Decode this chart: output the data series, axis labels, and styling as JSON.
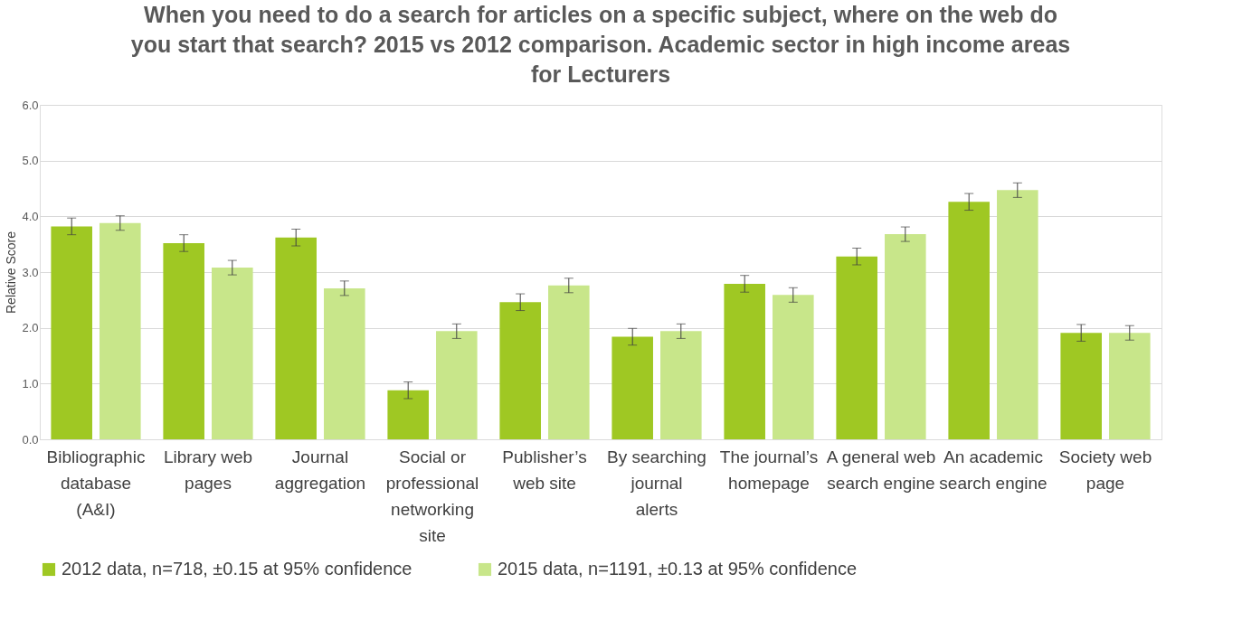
{
  "chart_data": {
    "type": "bar",
    "title": "When you need to do a search for articles on a specific subject, where on the web do you start that search? 2015 vs 2012 comparison. Academic sector in high income areas for Lecturers",
    "ylabel": "Relative Score",
    "categories": [
      "Bibliographic database (A&I)",
      "Library web pages",
      "Journal aggregation",
      "Social or professional networking site",
      "Publisher’s web site",
      "By searching journal alerts",
      "The journal’s homepage",
      "A general web search engine",
      "An academic search engine",
      "Society web page"
    ],
    "series": [
      {
        "name": "2012 data, n=718, ±0.15 at 95% confidence",
        "color": "#9fc823",
        "values": [
          3.82,
          3.52,
          3.62,
          0.88,
          2.46,
          1.84,
          2.79,
          3.28,
          4.26,
          1.91
        ],
        "errors": [
          0.15,
          0.15,
          0.15,
          0.15,
          0.15,
          0.15,
          0.15,
          0.15,
          0.15,
          0.15
        ]
      },
      {
        "name": "2015 data, n=1191, ±0.13 at 95% confidence",
        "color": "#c8e68a",
        "values": [
          3.88,
          3.08,
          2.71,
          1.94,
          2.76,
          1.94,
          2.59,
          3.68,
          4.47,
          1.91
        ],
        "errors": [
          0.13,
          0.13,
          0.13,
          0.13,
          0.13,
          0.13,
          0.13,
          0.13,
          0.13,
          0.13
        ]
      }
    ],
    "ylim": [
      0,
      6
    ],
    "yticks": [
      {
        "value": 0,
        "label": "0.0"
      },
      {
        "value": 1,
        "label": "1.0"
      },
      {
        "value": 2,
        "label": "2.0"
      },
      {
        "value": 3,
        "label": "3.0"
      },
      {
        "value": 4,
        "label": "4.0"
      },
      {
        "value": 5,
        "label": "5.0"
      },
      {
        "value": 6,
        "label": "6.0"
      }
    ],
    "grid": "y",
    "legend": "bottom"
  }
}
